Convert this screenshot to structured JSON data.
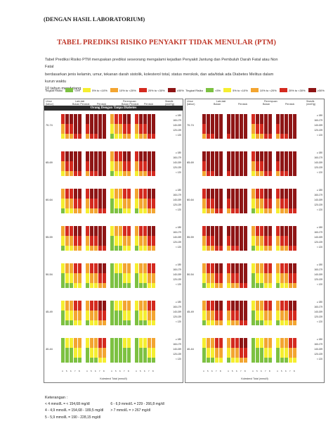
{
  "lab_note": "(DENGAN HASIL LABORATORIUM)",
  "title": "TABEL PREDIKSI RISIKO PENYAKIT TIDAK MENULAR (PTM)",
  "intro_lines": [
    "Tabel Prediksi Risiko PTM merupakan prediksi seseorang mengalami kejadian Penyakit Jantung dan Pembuluh Darah Fatal atau Non Fatal",
    "berdasarkan jenis kelamin, umur, tekanan darah sistolik, kolesterol total, status merokok, dan ada/tidak ada Diabetes Melitus dalam kurun waktu",
    "10 tahun mendatang"
  ],
  "legend": {
    "label": "Tingkat Risiko",
    "items": [
      {
        "text": "<5%",
        "color": "#7dc142"
      },
      {
        "text": "5% to <10%",
        "color": "#f5ee30"
      },
      {
        "text": "10% to <20%",
        "color": "#f3a531"
      },
      {
        "text": "20% to <30%",
        "color": "#d42a1f"
      },
      {
        "text": "≥30%",
        "color": "#8e1515"
      }
    ]
  },
  "panels": [
    {
      "band": "Orang Dengan Tanpa Diabetes",
      "hdr_umur": "Umur",
      "hdr_tahun": "(tahun)",
      "hdr_sex": "Laki-laki",
      "hdr_perempuan": "Perempuan",
      "hdr_bukan": "Bukan Perokok",
      "hdr_perokok": "Perokok",
      "hdr_sistolik": "Sistolik",
      "hdr_mmhg": "(mmHg)",
      "chol_title": "Kolesterol Total (mmol/l)"
    },
    {
      "band": "",
      "hdr_umur": "Umur",
      "hdr_tahun": "(tahun)",
      "hdr_sex": "Laki-laki",
      "hdr_perempuan": "Perempuan",
      "hdr_bukan": "Bukan",
      "hdr_perokok": "Perokok",
      "hdr_sistolik": "Sistolik",
      "hdr_mmhg": "(mmHg)",
      "chol_title": "Kolesterol Total (mmol/l)"
    }
  ],
  "age_groups": [
    "70-74",
    "65-69",
    "60-64",
    "55-59",
    "50-54",
    "45-49",
    "40-44"
  ],
  "bp_levels": [
    "≥ 180",
    "160-179",
    "140-159",
    "120-139",
    "< 120"
  ],
  "chol_levels": [
    "4",
    "5",
    "6",
    "7",
    "8"
  ],
  "risk_levels": {
    "70-74": 4,
    "65-69": 4,
    "60-64": 3,
    "55-59": 3,
    "50-54": 2,
    "45-49": 2,
    "40-44": 1
  },
  "notes": {
    "title": "Keterangan :",
    "col1": [
      "< 4 mmol/L = < 154,68 mg/dl",
      "4 - 4,9 mmol/L = 154,68 - 189,5 mg/dl",
      "5 - 5,9 mmol/L = 190 - 228,15 mg/dl"
    ],
    "col2": [
      "6 - 6,9 mmol/L = 229 - 266,8 mg/dl",
      "> 7 mmol/L     = > 267 mg/dl"
    ]
  }
}
